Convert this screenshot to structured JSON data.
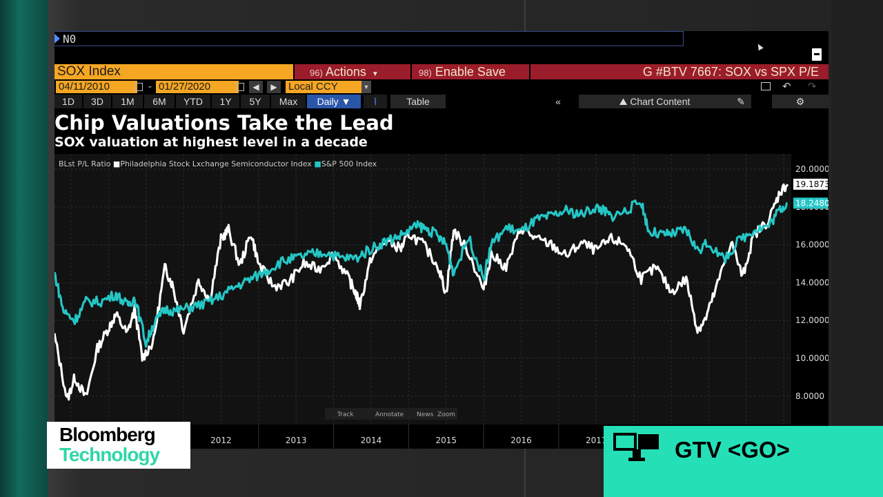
{
  "terminal": {
    "command_text": "N0",
    "ticker": "SOX Index",
    "actions": {
      "num": "96)",
      "label": "Actions"
    },
    "enable_save": {
      "num": "98)",
      "label": "Enable Save"
    },
    "graph_title": "G #BTV 7667: SOX vs SPX P/E",
    "start_date": "04/11/2010",
    "end_date": "01/27/2020",
    "currency": "Local CCY",
    "period_tabs": [
      "1D",
      "3D",
      "1M",
      "6M",
      "YTD",
      "1Y",
      "5Y",
      "Max"
    ],
    "frequency": "Daily ▼",
    "table_label": "Table",
    "chart_content_label": "Chart Content",
    "collapse_label": "«",
    "headline": "Chip Valuations Take the Lead",
    "subheadline": "SOX valuation at highest level in a decade"
  },
  "chart_data": {
    "type": "line",
    "legend_title": "BLst P/L Ratio",
    "legend_position": "top-left",
    "grid": true,
    "ylim": [
      6.5,
      20.8
    ],
    "y_ticks": [
      "20.0000",
      "18.0000",
      "16.0000",
      "14.0000",
      "12.0000",
      "10.0000",
      "8.0000"
    ],
    "x_ticks": [
      "2012",
      "2013",
      "2014",
      "2015",
      "2016",
      "2017"
    ],
    "series": [
      {
        "name": "Philadelphia Stock Lxchange Semiconductor Index",
        "color": "#ffffff",
        "last_label": "19.1873",
        "x": [
          2010.28,
          2010.45,
          2010.55,
          2010.7,
          2010.85,
          2011.0,
          2011.1,
          2011.25,
          2011.35,
          2011.45,
          2011.6,
          2011.75,
          2011.85,
          2012.0,
          2012.2,
          2012.35,
          2012.5,
          2012.6,
          2012.75,
          2012.9,
          2013.0,
          2013.2,
          2013.4,
          2013.6,
          2013.8,
          2014.0,
          2014.2,
          2014.3,
          2014.35,
          2014.5,
          2014.7,
          2014.9,
          2015.0,
          2015.2,
          2015.4,
          2015.5,
          2015.6,
          2015.8,
          2016.0,
          2016.1,
          2016.3,
          2016.5,
          2016.7,
          2016.9,
          2017.1,
          2017.3,
          2017.5,
          2017.7,
          2017.9,
          2018.1,
          2018.3,
          2018.5,
          2018.7,
          2018.85,
          2018.95,
          2019.1,
          2019.3,
          2019.45,
          2019.6,
          2019.8,
          2019.95,
          2020.05
        ],
        "values": [
          11.2,
          7.8,
          9.0,
          7.9,
          10.5,
          11.6,
          12.3,
          11.3,
          12.6,
          10.0,
          10.9,
          14.8,
          13.9,
          11.5,
          14.1,
          13.1,
          16.3,
          16.8,
          14.9,
          16.6,
          15.0,
          13.8,
          14.0,
          15.0,
          14.7,
          15.5,
          14.2,
          13.4,
          12.8,
          15.3,
          16.2,
          15.8,
          16.6,
          16.0,
          14.8,
          13.4,
          16.8,
          15.6,
          13.6,
          15.5,
          14.8,
          16.9,
          16.3,
          16.0,
          15.4,
          16.1,
          15.7,
          16.3,
          16.0,
          14.2,
          14.8,
          13.5,
          14.2,
          11.5,
          12.0,
          13.7,
          16.2,
          14.3,
          16.5,
          17.3,
          18.8,
          19.2
        ]
      },
      {
        "name": "S&P 500 Index",
        "color": "#25c6c6",
        "last_label": "18.2480",
        "x": [
          2010.28,
          2010.4,
          2010.55,
          2010.7,
          2010.9,
          2011.1,
          2011.25,
          2011.35,
          2011.5,
          2011.6,
          2011.75,
          2011.9,
          2012.1,
          2012.3,
          2012.5,
          2012.7,
          2012.9,
          2013.1,
          2013.3,
          2013.5,
          2013.7,
          2013.9,
          2014.1,
          2014.3,
          2014.5,
          2014.7,
          2014.9,
          2015.1,
          2015.2,
          2015.35,
          2015.5,
          2015.6,
          2015.8,
          2016.0,
          2016.1,
          2016.3,
          2016.5,
          2016.7,
          2016.9,
          2017.1,
          2017.3,
          2017.5,
          2017.6,
          2017.7,
          2017.9,
          2018.1,
          2018.2,
          2018.4,
          2018.55,
          2018.7,
          2018.85,
          2019.0,
          2019.2,
          2019.4,
          2019.6,
          2019.8,
          2019.95,
          2020.05
        ],
        "values": [
          14.5,
          12.5,
          12.0,
          13.0,
          13.0,
          13.4,
          12.8,
          13.2,
          10.8,
          11.8,
          12.6,
          12.5,
          12.7,
          12.9,
          13.3,
          13.8,
          14.2,
          14.6,
          15.1,
          15.3,
          15.5,
          15.6,
          15.3,
          15.3,
          15.8,
          16.2,
          16.5,
          17.0,
          16.9,
          16.6,
          16.0,
          14.5,
          16.4,
          14.2,
          16.0,
          16.9,
          16.7,
          17.3,
          17.5,
          17.8,
          17.6,
          18.0,
          17.8,
          17.5,
          17.8,
          18.3,
          16.7,
          16.5,
          16.6,
          16.8,
          15.7,
          16.1,
          15.2,
          16.2,
          16.8,
          17.0,
          17.9,
          18.2
        ]
      }
    ]
  },
  "chart_toolbar": [
    "Track",
    "Annotate",
    "News",
    "Zoom"
  ],
  "logo": {
    "line1": "Bloomberg",
    "line2": "Technology"
  },
  "promo": {
    "text": "GTV <GO>"
  }
}
